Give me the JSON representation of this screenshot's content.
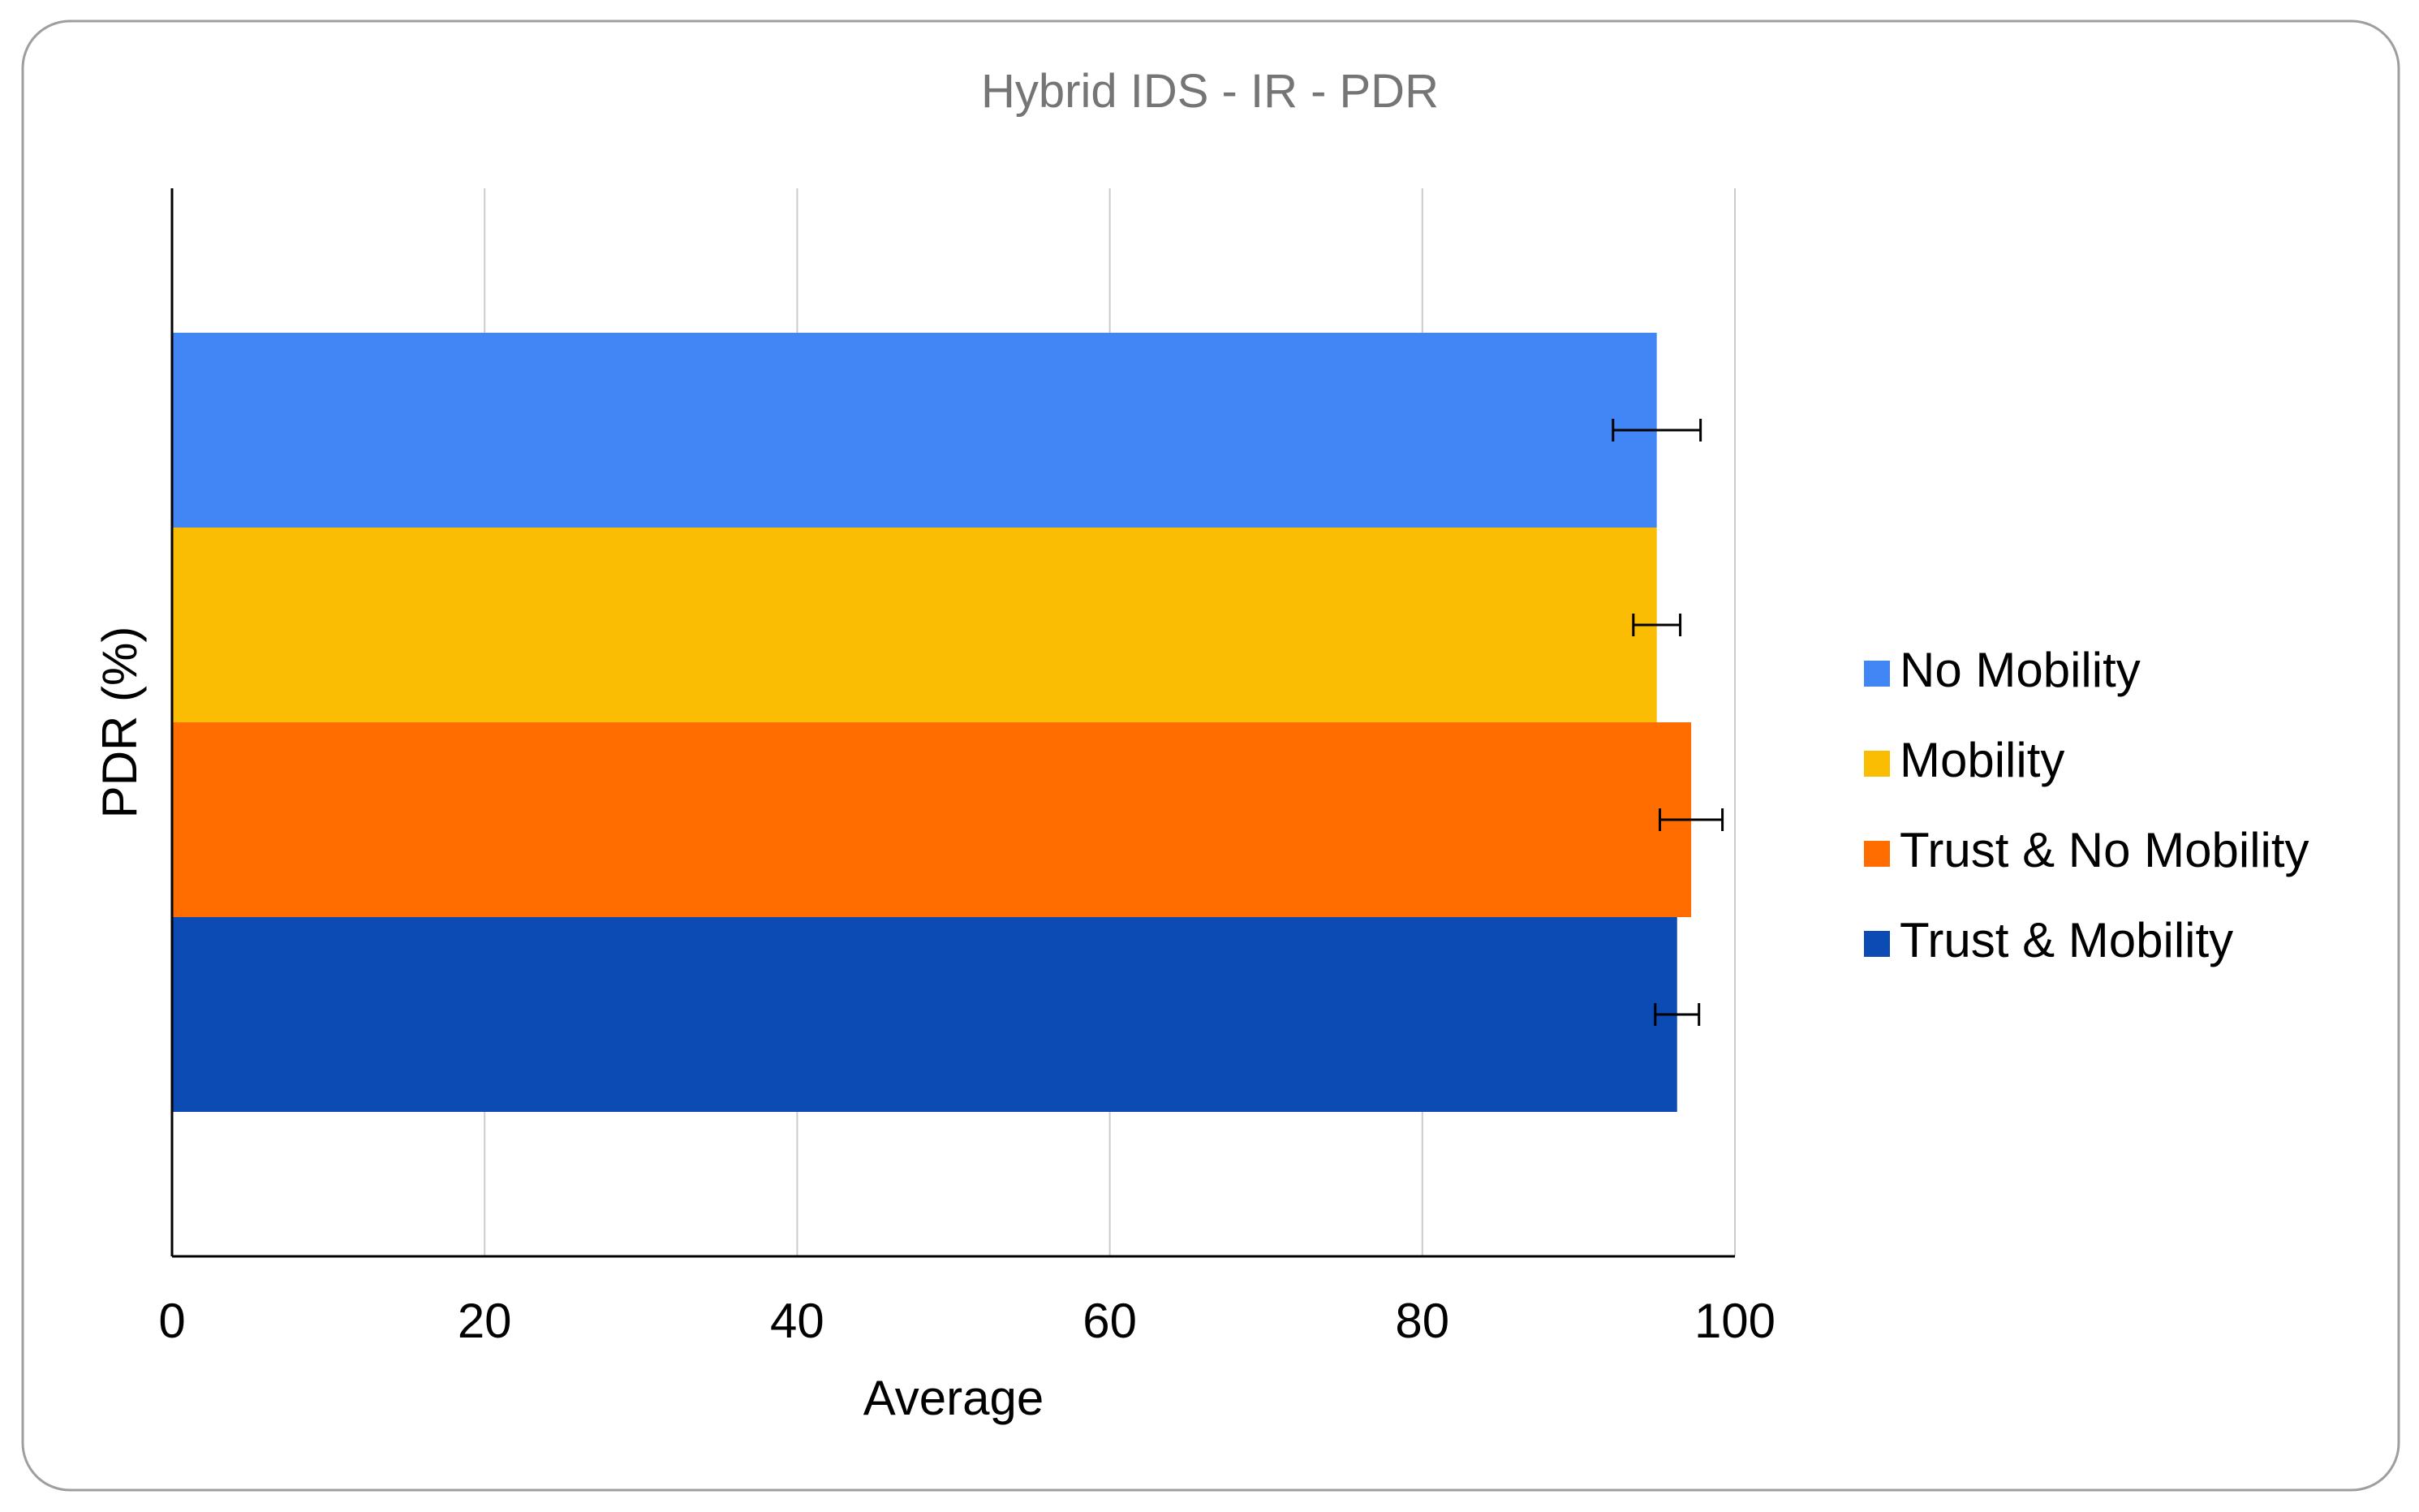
{
  "chart_data": {
    "type": "bar",
    "orientation": "horizontal",
    "title": "Hybrid IDS - IR - PDR",
    "xlabel": "Average",
    "ylabel": "PDR (%)",
    "xlim": [
      0,
      100
    ],
    "x_ticks": [
      "0",
      "20",
      "40",
      "60",
      "80",
      "100"
    ],
    "grid": true,
    "legend_position": "right",
    "series": [
      {
        "name": "No Mobility",
        "value": 95.0,
        "error": 2.8,
        "color": "#4285f4"
      },
      {
        "name": "Mobility",
        "value": 95.0,
        "error": 1.5,
        "color": "#fbbc04"
      },
      {
        "name": "Trust & No Mobility",
        "value": 97.2,
        "error": 2.0,
        "color": "#ff6d01"
      },
      {
        "name": "Trust & Mobility",
        "value": 96.3,
        "error": 1.4,
        "color": "#0b4bb3"
      }
    ]
  },
  "colors": {
    "title_text": "#757575",
    "axis_text": "#000000",
    "gridline": "#cccccc",
    "axis_line": "#000000",
    "frame_border": "#9e9e9e"
  }
}
